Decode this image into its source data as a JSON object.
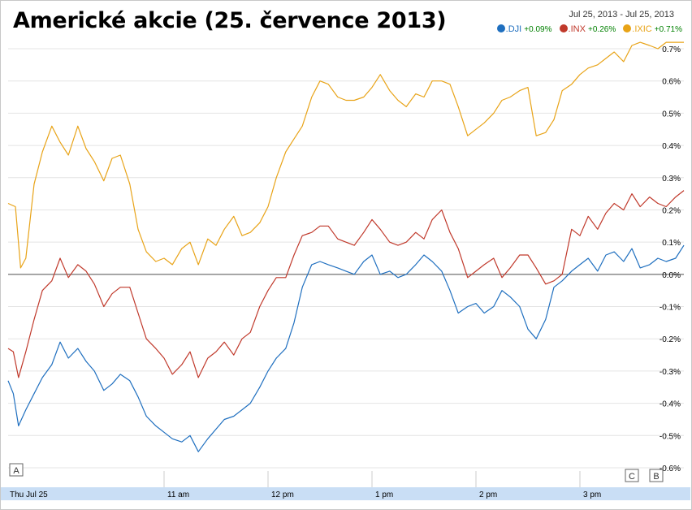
{
  "title": "Americké akcie (25. července 2013)",
  "date_range": "Jul 25, 2013  -  Jul 25, 2013",
  "legend": [
    {
      "symbol": ".DJI",
      "change": "+0.09%",
      "color": "#1f6fbf"
    },
    {
      "symbol": ".INX",
      "change": "+0.26%",
      "color": "#c0392b"
    },
    {
      "symbol": ".IXIC",
      "change": "+0.71%",
      "color": "#e8a317"
    }
  ],
  "markers": [
    "A",
    "C",
    "B"
  ],
  "chart_data": {
    "type": "line",
    "xlabel": "",
    "ylabel": "",
    "x_ticks": [
      "Thu Jul 25",
      "11 am",
      "12 pm",
      "1 pm",
      "2 pm",
      "3 pm"
    ],
    "x_tick_times": [
      9.5,
      11,
      12,
      13,
      14,
      15
    ],
    "xlim": [
      9.5,
      16
    ],
    "ylim": [
      -0.62,
      0.72
    ],
    "y_ticks": [
      "0.7%",
      "0.6%",
      "0.5%",
      "0.4%",
      "0.3%",
      "0.2%",
      "0.1%",
      "0.0%",
      "-0.1%",
      "-0.2%",
      "-0.3%",
      "-0.4%",
      "-0.5%",
      "-0.6%"
    ],
    "y_tick_values": [
      0.7,
      0.6,
      0.5,
      0.4,
      0.3,
      0.2,
      0.1,
      0.0,
      -0.1,
      -0.2,
      -0.3,
      -0.4,
      -0.5,
      -0.6
    ],
    "grid": true,
    "legend_position": "top-right",
    "series": [
      {
        "name": ".IXIC",
        "color": "#e8a317",
        "x": [
          9.5,
          9.57,
          9.62,
          9.67,
          9.75,
          9.83,
          9.92,
          10.0,
          10.08,
          10.17,
          10.25,
          10.33,
          10.42,
          10.5,
          10.58,
          10.67,
          10.75,
          10.83,
          10.92,
          11.0,
          11.08,
          11.17,
          11.25,
          11.33,
          11.42,
          11.5,
          11.58,
          11.67,
          11.75,
          11.83,
          11.92,
          12.0,
          12.08,
          12.17,
          12.25,
          12.33,
          12.42,
          12.5,
          12.58,
          12.67,
          12.75,
          12.83,
          12.92,
          13.0,
          13.08,
          13.17,
          13.25,
          13.33,
          13.42,
          13.5,
          13.58,
          13.67,
          13.75,
          13.83,
          13.92,
          14.0,
          14.08,
          14.17,
          14.25,
          14.33,
          14.42,
          14.5,
          14.58,
          14.67,
          14.75,
          14.83,
          14.92,
          15.0,
          15.08,
          15.17,
          15.25,
          15.33,
          15.42,
          15.5,
          15.58,
          15.67,
          15.75,
          15.83,
          15.92,
          16.0
        ],
        "y": [
          0.22,
          0.21,
          0.02,
          0.05,
          0.28,
          0.38,
          0.46,
          0.41,
          0.37,
          0.46,
          0.39,
          0.35,
          0.29,
          0.36,
          0.37,
          0.28,
          0.14,
          0.07,
          0.04,
          0.05,
          0.03,
          0.08,
          0.1,
          0.03,
          0.11,
          0.09,
          0.14,
          0.18,
          0.12,
          0.13,
          0.16,
          0.21,
          0.3,
          0.38,
          0.42,
          0.46,
          0.55,
          0.6,
          0.59,
          0.55,
          0.54,
          0.54,
          0.55,
          0.58,
          0.62,
          0.57,
          0.54,
          0.52,
          0.56,
          0.55,
          0.6,
          0.6,
          0.59,
          0.52,
          0.43,
          0.45,
          0.47,
          0.5,
          0.54,
          0.55,
          0.57,
          0.58,
          0.43,
          0.44,
          0.48,
          0.57,
          0.59,
          0.62,
          0.64,
          0.65,
          0.67,
          0.69,
          0.66,
          0.71,
          0.72,
          0.71,
          0.7,
          0.72,
          0.72,
          0.72
        ]
      },
      {
        "name": ".INX",
        "color": "#c0392b",
        "x": [
          9.5,
          9.55,
          9.6,
          9.67,
          9.75,
          9.83,
          9.92,
          10.0,
          10.08,
          10.17,
          10.25,
          10.33,
          10.42,
          10.5,
          10.58,
          10.67,
          10.75,
          10.83,
          10.92,
          11.0,
          11.08,
          11.17,
          11.25,
          11.33,
          11.42,
          11.5,
          11.58,
          11.67,
          11.75,
          11.83,
          11.92,
          12.0,
          12.08,
          12.17,
          12.25,
          12.33,
          12.42,
          12.5,
          12.58,
          12.67,
          12.75,
          12.83,
          12.92,
          13.0,
          13.08,
          13.17,
          13.25,
          13.33,
          13.42,
          13.5,
          13.58,
          13.67,
          13.75,
          13.83,
          13.92,
          14.0,
          14.08,
          14.17,
          14.25,
          14.33,
          14.42,
          14.5,
          14.58,
          14.67,
          14.75,
          14.83,
          14.92,
          15.0,
          15.08,
          15.17,
          15.25,
          15.33,
          15.42,
          15.5,
          15.58,
          15.67,
          15.75,
          15.83,
          15.92,
          16.0
        ],
        "y": [
          -0.23,
          -0.24,
          -0.32,
          -0.24,
          -0.14,
          -0.05,
          -0.02,
          0.05,
          -0.01,
          0.03,
          0.01,
          -0.03,
          -0.1,
          -0.06,
          -0.04,
          -0.04,
          -0.12,
          -0.2,
          -0.23,
          -0.26,
          -0.31,
          -0.28,
          -0.24,
          -0.32,
          -0.26,
          -0.24,
          -0.21,
          -0.25,
          -0.2,
          -0.18,
          -0.1,
          -0.05,
          -0.01,
          -0.01,
          0.06,
          0.12,
          0.13,
          0.15,
          0.15,
          0.11,
          0.1,
          0.09,
          0.13,
          0.17,
          0.14,
          0.1,
          0.09,
          0.1,
          0.13,
          0.11,
          0.17,
          0.2,
          0.13,
          0.08,
          -0.01,
          0.01,
          0.03,
          0.05,
          -0.01,
          0.02,
          0.06,
          0.06,
          0.02,
          -0.03,
          -0.02,
          0.0,
          0.14,
          0.12,
          0.18,
          0.14,
          0.19,
          0.22,
          0.2,
          0.25,
          0.21,
          0.24,
          0.22,
          0.21,
          0.24,
          0.26
        ]
      },
      {
        "name": ".DJI",
        "color": "#1f6fbf",
        "x": [
          9.5,
          9.55,
          9.6,
          9.67,
          9.75,
          9.83,
          9.92,
          10.0,
          10.08,
          10.17,
          10.25,
          10.33,
          10.42,
          10.5,
          10.58,
          10.67,
          10.75,
          10.83,
          10.92,
          11.0,
          11.08,
          11.17,
          11.25,
          11.33,
          11.42,
          11.5,
          11.58,
          11.67,
          11.75,
          11.83,
          11.92,
          12.0,
          12.08,
          12.17,
          12.25,
          12.33,
          12.42,
          12.5,
          12.58,
          12.67,
          12.75,
          12.83,
          12.92,
          13.0,
          13.08,
          13.17,
          13.25,
          13.33,
          13.42,
          13.5,
          13.58,
          13.67,
          13.75,
          13.83,
          13.92,
          14.0,
          14.08,
          14.17,
          14.25,
          14.33,
          14.42,
          14.5,
          14.58,
          14.67,
          14.75,
          14.83,
          14.92,
          15.0,
          15.08,
          15.17,
          15.25,
          15.33,
          15.42,
          15.5,
          15.58,
          15.67,
          15.75,
          15.83,
          15.92,
          16.0
        ],
        "y": [
          -0.33,
          -0.37,
          -0.47,
          -0.42,
          -0.37,
          -0.32,
          -0.28,
          -0.21,
          -0.26,
          -0.23,
          -0.27,
          -0.3,
          -0.36,
          -0.34,
          -0.31,
          -0.33,
          -0.38,
          -0.44,
          -0.47,
          -0.49,
          -0.51,
          -0.52,
          -0.5,
          -0.55,
          -0.51,
          -0.48,
          -0.45,
          -0.44,
          -0.42,
          -0.4,
          -0.35,
          -0.3,
          -0.26,
          -0.23,
          -0.15,
          -0.04,
          0.03,
          0.04,
          0.03,
          0.02,
          0.01,
          0.0,
          0.04,
          0.06,
          0.0,
          0.01,
          -0.01,
          0.0,
          0.03,
          0.06,
          0.04,
          0.01,
          -0.05,
          -0.12,
          -0.1,
          -0.09,
          -0.12,
          -0.1,
          -0.05,
          -0.07,
          -0.1,
          -0.17,
          -0.2,
          -0.14,
          -0.04,
          -0.02,
          0.01,
          0.03,
          0.05,
          0.01,
          0.06,
          0.07,
          0.04,
          0.08,
          0.02,
          0.03,
          0.05,
          0.04,
          0.05,
          0.09
        ]
      }
    ]
  }
}
